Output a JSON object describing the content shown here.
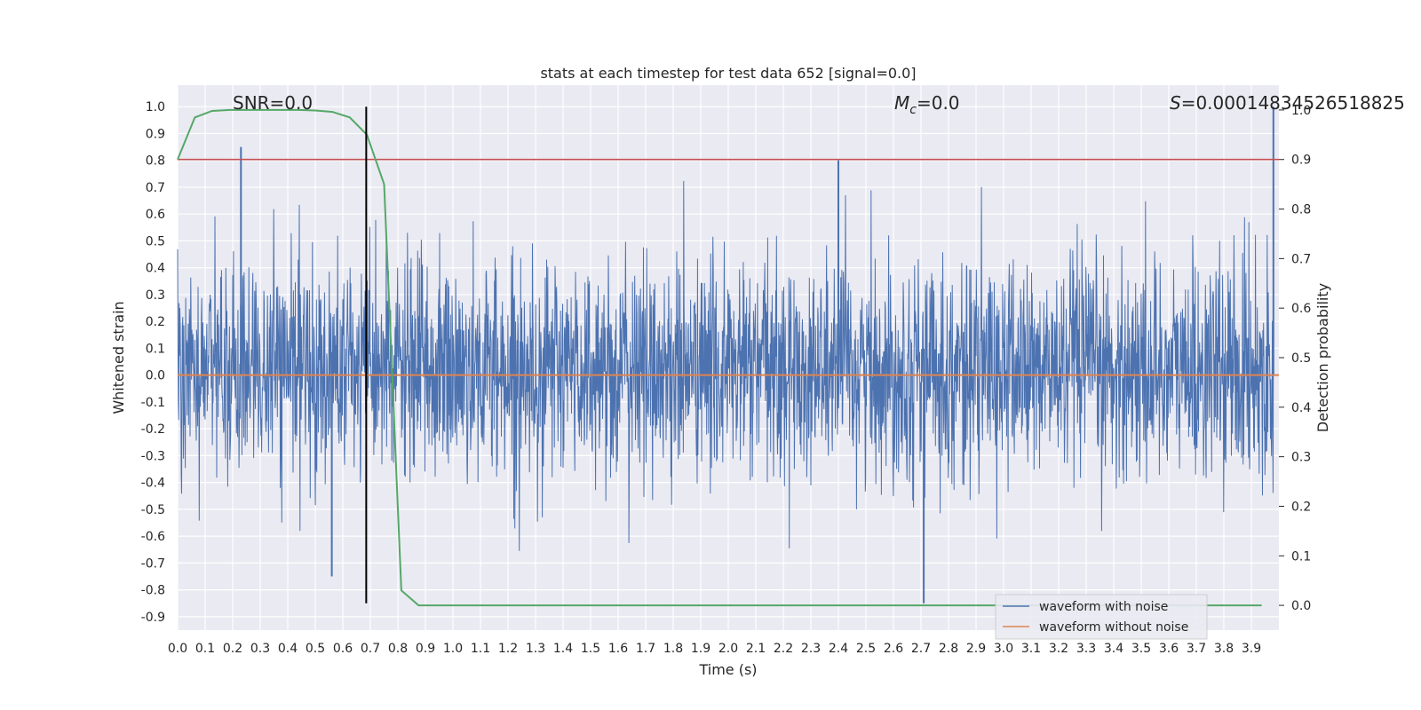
{
  "chart_data": {
    "type": "line",
    "title": "stats at each timestep for test data 652 [signal=0.0]",
    "xlabel": "Time (s)",
    "ylabel": "Whitened strain",
    "y2label": "Detection probability",
    "xlim": [
      0.0,
      4.0
    ],
    "ylim": [
      -0.95,
      1.08
    ],
    "y2lim": [
      -0.05,
      1.05
    ],
    "x_ticks": [
      "0.0",
      "0.1",
      "0.2",
      "0.3",
      "0.4",
      "0.5",
      "0.6",
      "0.7",
      "0.8",
      "0.9",
      "1.0",
      "1.1",
      "1.2",
      "1.3",
      "1.4",
      "1.5",
      "1.6",
      "1.7",
      "1.8",
      "1.9",
      "2.0",
      "2.1",
      "2.2",
      "2.3",
      "2.4",
      "2.5",
      "2.6",
      "2.7",
      "2.8",
      "2.9",
      "3.0",
      "3.1",
      "3.2",
      "3.3",
      "3.4",
      "3.5",
      "3.6",
      "3.7",
      "3.8",
      "3.9"
    ],
    "y_ticks": [
      "1.0",
      "0.9",
      "0.8",
      "0.7",
      "0.6",
      "0.5",
      "0.4",
      "0.3",
      "0.2",
      "0.1",
      "0.0",
      "-0.1",
      "-0.2",
      "-0.3",
      "-0.4",
      "-0.5",
      "-0.6",
      "-0.7",
      "-0.8",
      "-0.9"
    ],
    "y2_ticks": [
      "1.0",
      "0.9",
      "0.8",
      "0.7",
      "0.6",
      "0.5",
      "0.4",
      "0.3",
      "0.2",
      "0.1",
      "0.0"
    ],
    "grid": true,
    "legend_position": "lower-right",
    "annotations": {
      "snr": "SNR=0.0",
      "mc_symbol": "M",
      "mc_sub": "c",
      "mc_value": "=0.0",
      "s_symbol": "S",
      "s_value": "=0.00014834526518825"
    },
    "series": [
      {
        "name": "waveform with noise",
        "color": "#4c72b0",
        "axis": "left",
        "kind": "noise",
        "amplitude_range": [
          -0.85,
          1.0
        ],
        "notable_spikes": [
          [
            0.23,
            0.85
          ],
          [
            2.4,
            0.8
          ],
          [
            2.71,
            -0.85
          ],
          [
            3.98,
            1.0
          ],
          [
            0.56,
            -0.75
          ]
        ]
      },
      {
        "name": "waveform without noise",
        "color": "#dd8452",
        "axis": "left",
        "x": [
          0.0,
          4.0
        ],
        "values": [
          0.0,
          0.0
        ]
      },
      {
        "name": "detection probability",
        "color": "#55a868",
        "axis": "right",
        "x": [
          0.0,
          0.0625,
          0.125,
          0.1875,
          0.25,
          0.3125,
          0.375,
          0.4375,
          0.5,
          0.5625,
          0.625,
          0.6875,
          0.75,
          0.8125,
          0.875,
          0.9375,
          1.0,
          2.0,
          3.0,
          3.9375
        ],
        "values": [
          0.9,
          0.985,
          0.998,
          1.0,
          1.0,
          1.0,
          1.0,
          1.0,
          0.999,
          0.996,
          0.985,
          0.95,
          0.85,
          0.03,
          0.0,
          0.0,
          0.0,
          0.0,
          0.0,
          0.0
        ]
      },
      {
        "name": "threshold",
        "color": "#c44e52",
        "axis": "right",
        "x": [
          0.0,
          4.0
        ],
        "values": [
          0.9,
          0.9
        ]
      },
      {
        "name": "vertical marker",
        "color": "#000000",
        "kind": "vline",
        "x": 0.685,
        "y_range": [
          -0.85,
          1.0
        ]
      }
    ],
    "colors": {
      "background": "#eaeaf2",
      "grid": "#ffffff",
      "text": "#262626"
    }
  }
}
